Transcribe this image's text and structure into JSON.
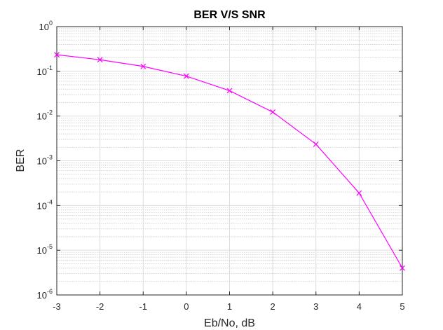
{
  "chart_data": {
    "type": "line",
    "title": "BER V/S SNR",
    "xlabel": "Eb/No, dB",
    "ylabel": "BER",
    "x_scale": "linear",
    "y_scale": "log",
    "xlim": [
      -3,
      5
    ],
    "ylim": [
      1e-06,
      1
    ],
    "x_ticks": [
      -3,
      -2,
      -1,
      0,
      1,
      2,
      3,
      4,
      5
    ],
    "y_tick_exponents": [
      0,
      -1,
      -2,
      -3,
      -4,
      -5,
      -6
    ],
    "y_tick_base": "10",
    "grid": true,
    "minor_grid": true,
    "marker": "x",
    "line_color": "#ff00ff",
    "series": [
      {
        "x": [
          -3,
          -2,
          -1,
          0,
          1,
          2,
          3,
          4,
          5
        ],
        "values": [
          0.235,
          0.182,
          0.129,
          0.078,
          0.037,
          0.0123,
          0.00235,
          0.00019,
          4e-06
        ]
      }
    ]
  }
}
